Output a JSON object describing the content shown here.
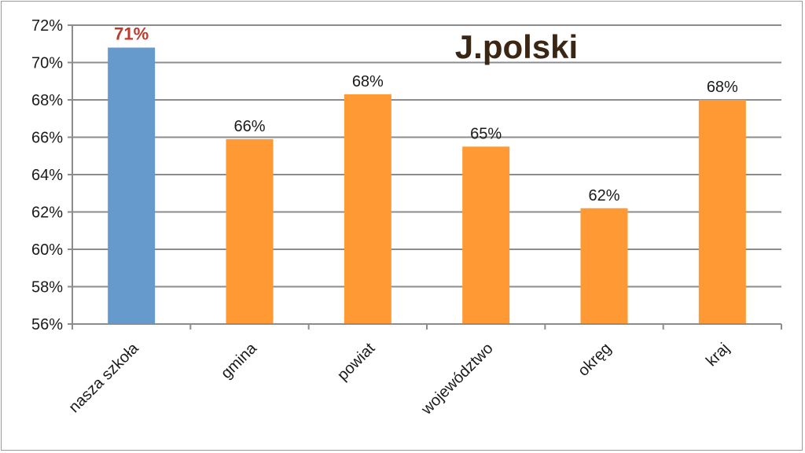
{
  "chart_data": {
    "type": "bar",
    "title": "J.polski",
    "categories": [
      "nasza szkoła",
      "gmina",
      "powiat",
      "województwo",
      "okręg",
      "kraj"
    ],
    "values": [
      70.8,
      65.9,
      68.3,
      65.5,
      62.2,
      68.0
    ],
    "data_labels": [
      "71%",
      "66%",
      "68%",
      "65%",
      "62%",
      "68%"
    ],
    "highlight_index": 0,
    "ylim": [
      56,
      72
    ],
    "yticks": [
      "56%",
      "58%",
      "60%",
      "62%",
      "64%",
      "66%",
      "68%",
      "70%",
      "72%"
    ],
    "grid": true,
    "legend": "none",
    "colors": {
      "highlight_bar": "#6699cc",
      "bar": "#ff9933",
      "highlight_label": "#c0392b",
      "grid": "#8c8c8c",
      "title": "#3a2612"
    }
  }
}
